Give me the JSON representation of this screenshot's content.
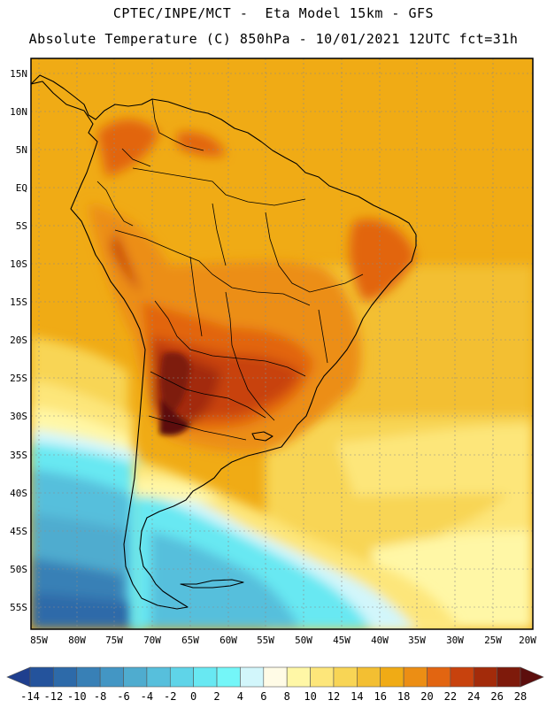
{
  "header": {
    "line1": "CPTEC/INPE/MCT -  Eta Model 15km - GFS",
    "line2": "Absolute Temperature (C) 850hPa - 10/01/2021 12UTC fct=31h"
  },
  "axes": {
    "lat_labels": [
      "15N",
      "10N",
      "5N",
      "EQ",
      "5S",
      "10S",
      "15S",
      "20S",
      "25S",
      "30S",
      "35S",
      "40S",
      "45S",
      "50S",
      "55S"
    ],
    "lon_labels": [
      "85W",
      "80W",
      "75W",
      "70W",
      "65W",
      "60W",
      "55W",
      "50W",
      "45W",
      "40W",
      "35W",
      "30W",
      "25W",
      "20W"
    ]
  },
  "colorbar": {
    "labels": [
      "-14",
      "-12",
      "-10",
      "-8",
      "-6",
      "-4",
      "-2",
      "0",
      "2",
      "4",
      "6",
      "8",
      "10",
      "12",
      "14",
      "16",
      "18",
      "20",
      "22",
      "24",
      "26",
      "28"
    ],
    "colors": [
      "#1f3f8e",
      "#24539c",
      "#2d6aa9",
      "#3880b6",
      "#4396c4",
      "#4faccf",
      "#57bfdc",
      "#5fd4e8",
      "#68e8f2",
      "#74f6f8",
      "#d2f6fb",
      "#fffbe6",
      "#fff7a6",
      "#fde67a",
      "#f8d555",
      "#f3bf32",
      "#f0ab15",
      "#ec8e14",
      "#e26511",
      "#c8420d",
      "#a32b0a",
      "#7e1a0b",
      "#5c0e0d"
    ]
  }
}
